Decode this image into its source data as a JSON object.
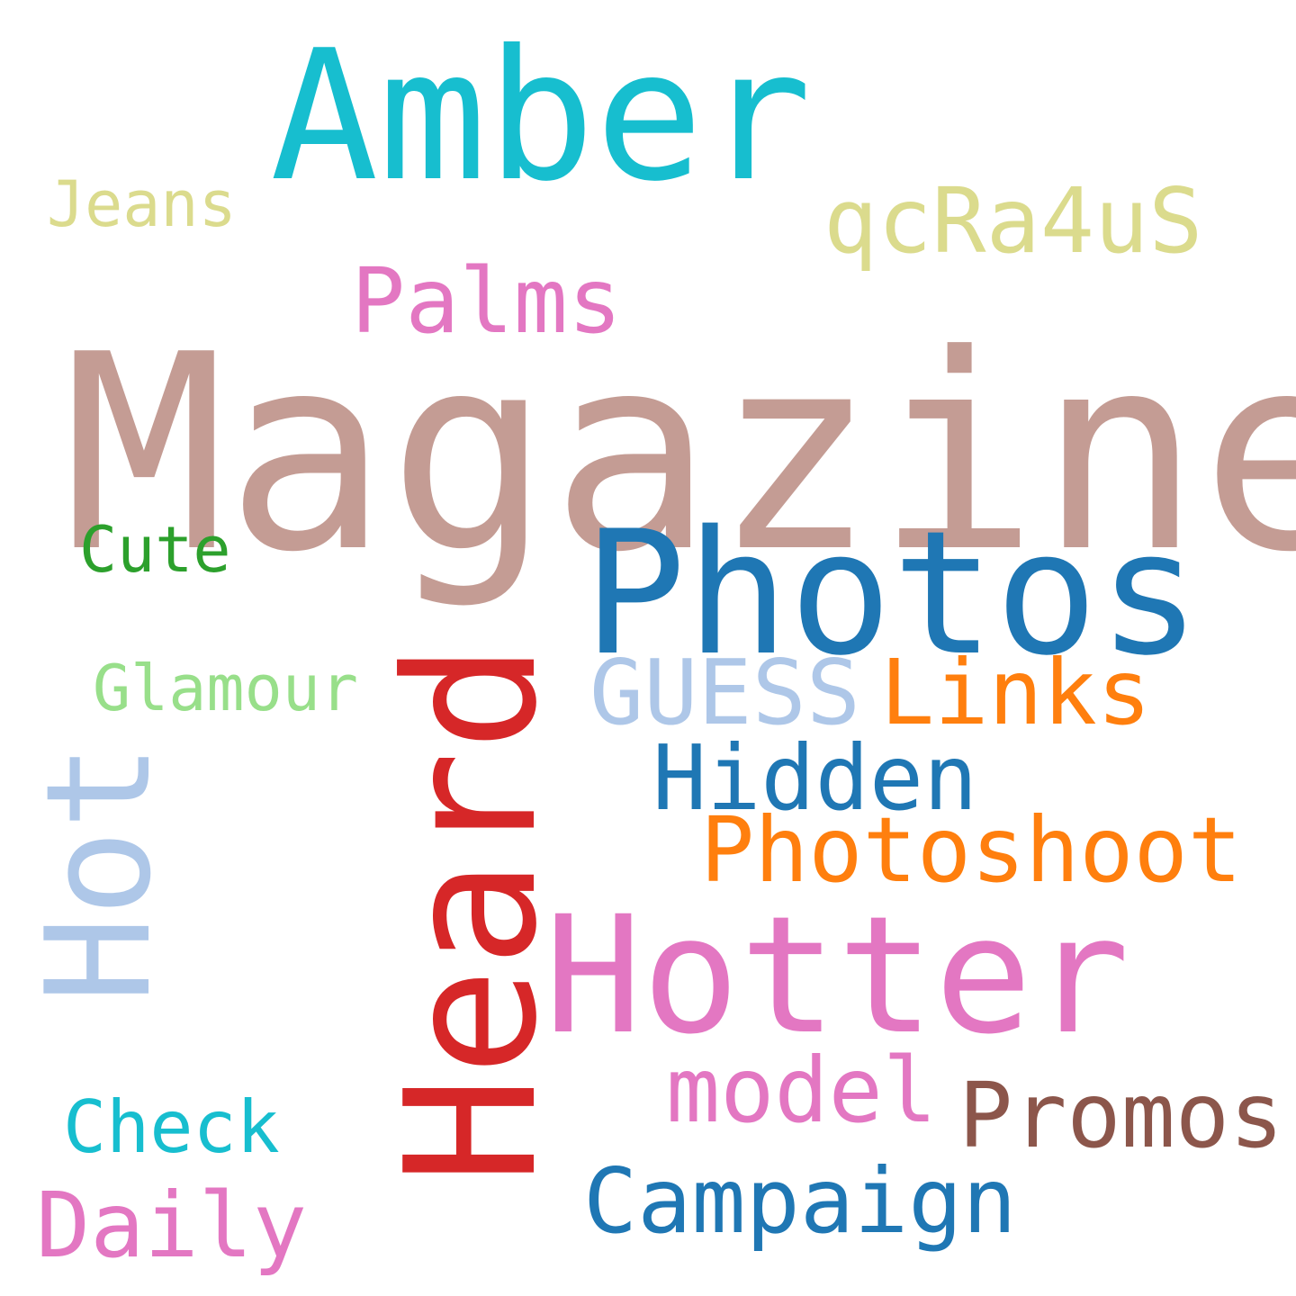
{
  "words": {
    "magazine": {
      "text": "Magazine",
      "color": "#c49c94"
    },
    "amber": {
      "text": "Amber",
      "color": "#17becf"
    },
    "photos": {
      "text": "Photos",
      "color": "#1f77b4"
    },
    "heard": {
      "text": "Heard",
      "color": "#d62728"
    },
    "hotter": {
      "text": "Hotter",
      "color": "#e377c2"
    },
    "hot": {
      "text": "Hot",
      "color": "#aec7e8"
    },
    "photoshoot": {
      "text": "Photoshoot",
      "color": "#ff7f0e"
    },
    "qcra4us": {
      "text": "qcRa4uS",
      "color": "#dbdb8d"
    },
    "palms": {
      "text": "Palms",
      "color": "#e377c2"
    },
    "jeans": {
      "text": "Jeans",
      "color": "#dbdb8d"
    },
    "cute": {
      "text": "Cute",
      "color": "#2ca02c"
    },
    "glamour": {
      "text": "Glamour",
      "color": "#98df8a"
    },
    "guess": {
      "text": "GUESS",
      "color": "#aec7e8"
    },
    "links": {
      "text": "Links",
      "color": "#ff7f0e"
    },
    "hidden": {
      "text": "Hidden",
      "color": "#1f77b4"
    },
    "model": {
      "text": "model",
      "color": "#e377c2"
    },
    "promos": {
      "text": "Promos",
      "color": "#8c564b"
    },
    "campaign": {
      "text": "Campaign",
      "color": "#1f77b4"
    },
    "check": {
      "text": "Check",
      "color": "#17becf"
    },
    "daily": {
      "text": "Daily",
      "color": "#e377c2"
    }
  }
}
